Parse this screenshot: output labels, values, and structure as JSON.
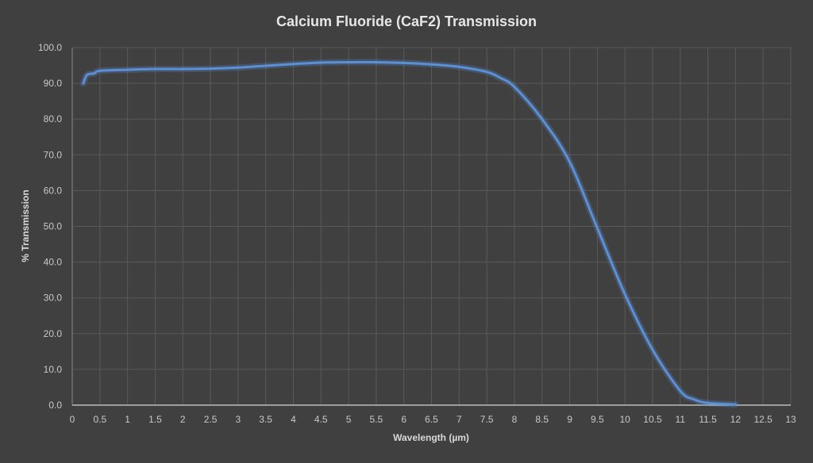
{
  "chart_data": {
    "type": "line",
    "title": "Calcium Fluoride (CaF2) Transmission",
    "xlabel": "Wavelength (µm)",
    "ylabel": "% Transmission",
    "xlim": [
      0,
      13
    ],
    "ylim": [
      0,
      100
    ],
    "x_ticks": [
      "0",
      "0.5",
      "1",
      "1.5",
      "2",
      "2.5",
      "3",
      "3.5",
      "4",
      "4.5",
      "5",
      "5.5",
      "6",
      "6.5",
      "7",
      "7.5",
      "8",
      "8.5",
      "9",
      "9.5",
      "10",
      "10.5",
      "11",
      "11.5",
      "12",
      "12.5",
      "13"
    ],
    "y_ticks": [
      "0.0",
      "10.0",
      "20.0",
      "30.0",
      "40.0",
      "50.0",
      "60.0",
      "70.0",
      "80.0",
      "90.0",
      "100.0"
    ],
    "grid": true,
    "colors": {
      "background": "#404040",
      "line": "#5b8fd6",
      "grid": "#595959"
    },
    "series": [
      {
        "x": [
          0.2,
          0.25,
          0.3,
          0.4,
          0.5,
          1,
          1.5,
          2,
          2.5,
          3,
          3.5,
          4,
          4.5,
          5,
          5.5,
          6,
          6.5,
          7,
          7.5,
          7.75,
          8,
          8.5,
          9,
          9.5,
          10,
          10.5,
          11,
          11.25,
          11.5,
          12
        ],
        "y": [
          90,
          92,
          92.6,
          92.8,
          93.5,
          93.8,
          94,
          94,
          94.1,
          94.4,
          94.9,
          95.4,
          95.8,
          95.9,
          95.9,
          95.7,
          95.3,
          94.6,
          93.2,
          91.5,
          89,
          80,
          68,
          49.5,
          31,
          15.5,
          4,
          1.6,
          0.6,
          0.2
        ]
      }
    ]
  }
}
